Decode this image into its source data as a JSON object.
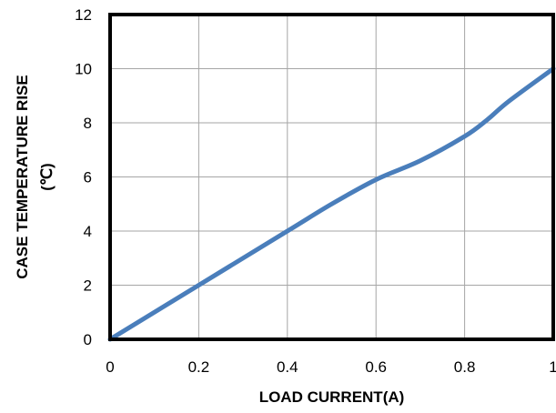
{
  "chart_data": {
    "type": "line",
    "title": "",
    "xlabel": "LOAD CURRENT(A)",
    "ylabel_line1": "CASE TEMPERATURE RISE",
    "ylabel_line2": "(℃)",
    "xlim": [
      0,
      1
    ],
    "ylim": [
      0,
      12
    ],
    "x_ticks": [
      "0",
      "0.2",
      "0.4",
      "0.6",
      "0.8",
      "1"
    ],
    "y_ticks": [
      "0",
      "2",
      "4",
      "6",
      "8",
      "10",
      "12"
    ],
    "grid": true,
    "legend": "none",
    "series": [
      {
        "color": "#4a7ebb",
        "x": [
          0,
          0.2,
          0.4,
          0.5,
          0.6,
          0.7,
          0.8,
          0.85,
          0.9,
          1.0
        ],
        "y": [
          0,
          2.0,
          4.0,
          5.0,
          5.9,
          6.6,
          7.5,
          8.1,
          8.8,
          10.0
        ]
      }
    ]
  }
}
